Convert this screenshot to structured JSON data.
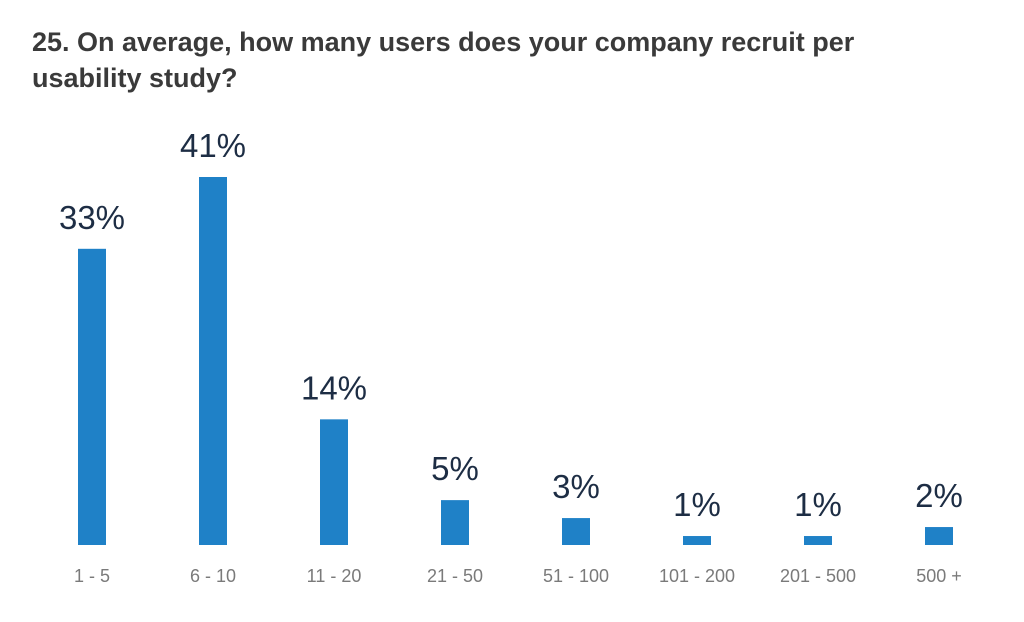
{
  "chart_data": {
    "type": "bar",
    "title": "25. On average, how many users does your company recruit per usability study?",
    "categories": [
      "1 - 5",
      "6 - 10",
      "11 - 20",
      "21 - 50",
      "51 - 100",
      "101 - 200",
      "201 - 500",
      "500 +"
    ],
    "values": [
      33,
      41,
      14,
      5,
      3,
      1,
      1,
      2
    ],
    "value_labels": [
      "33%",
      "41%",
      "14%",
      "5%",
      "3%",
      "1%",
      "1%",
      "2%"
    ],
    "color": "#1f81c7"
  }
}
